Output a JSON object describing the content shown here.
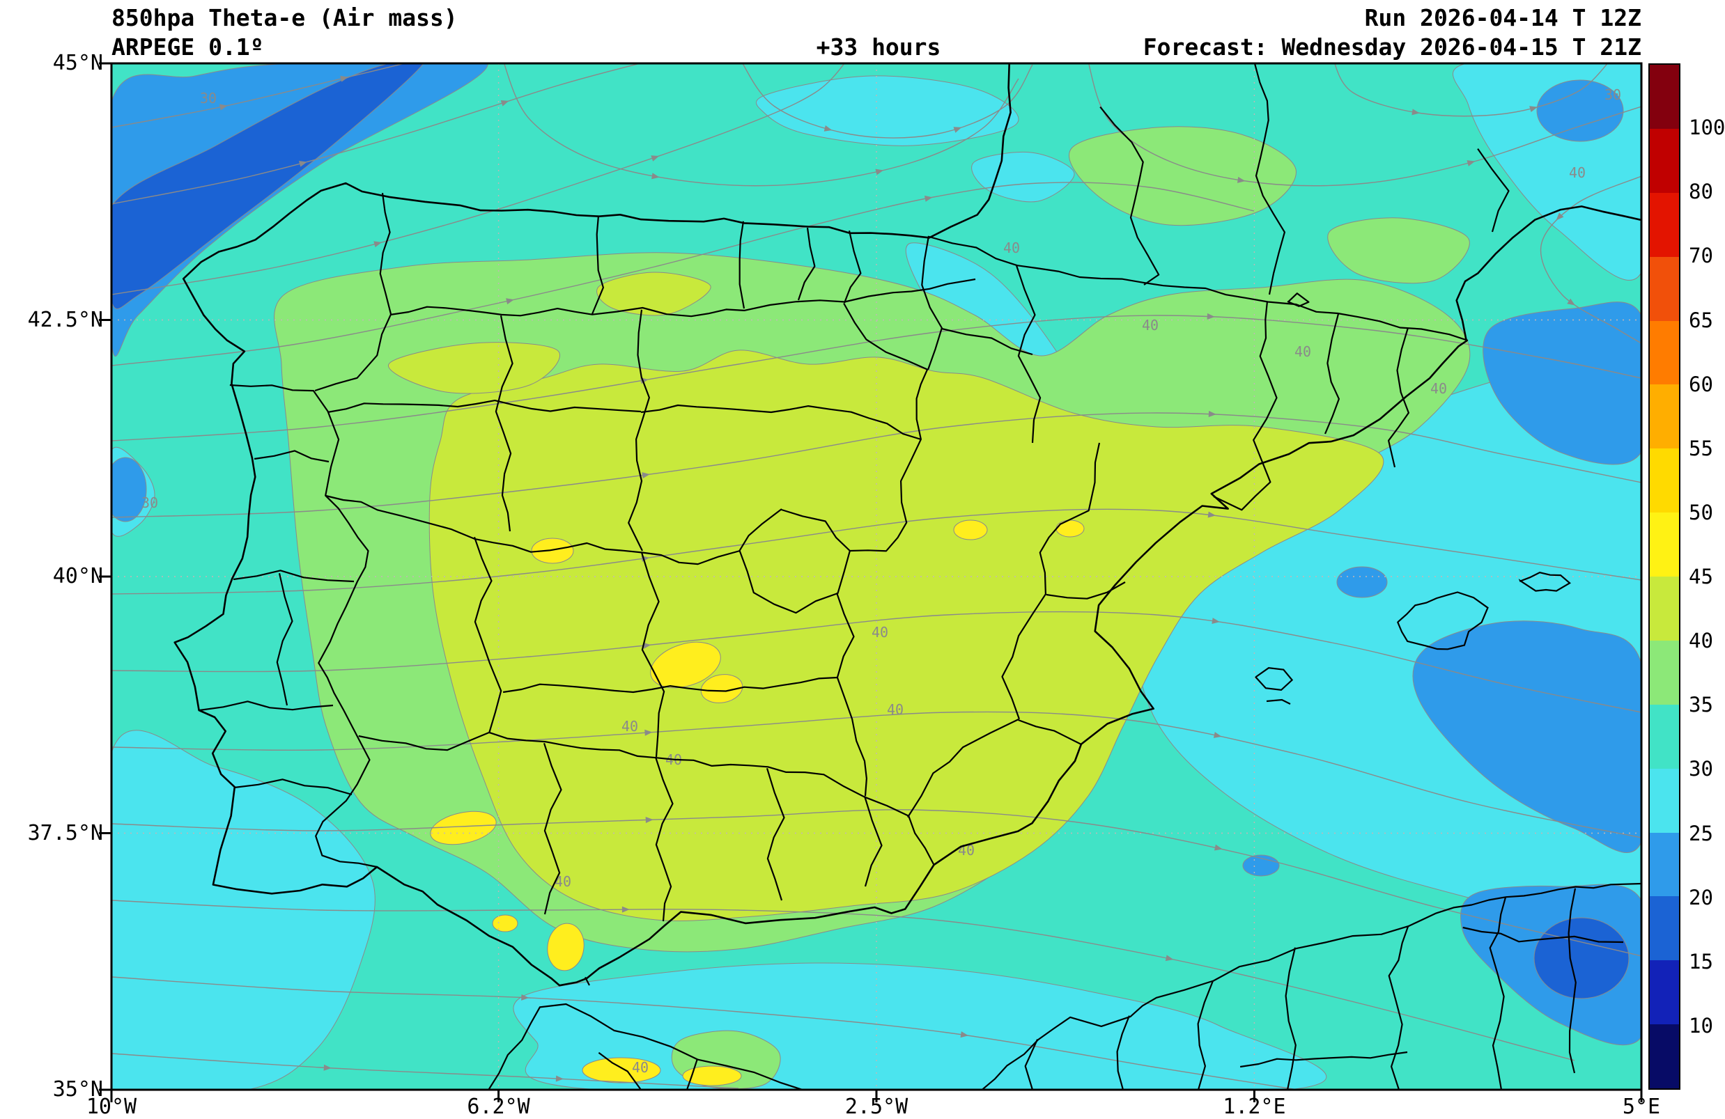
{
  "header": {
    "title_line1": "850hpa Theta-e (Air mass)",
    "title_line2": "ARPEGE 0.1º",
    "lead_time": "+33 hours",
    "run_label": "Run 2026-04-14 T 12Z",
    "forecast_label": "Forecast: Wednesday 2026-04-15 T 21Z"
  },
  "axes": {
    "lat_ticks": [
      "45°N",
      "42.5°N",
      "40°N",
      "37.5°N",
      "35°N"
    ],
    "lon_ticks": [
      "10°W",
      "6.2°W",
      "2.5°W",
      "1.2°E",
      "5°E"
    ]
  },
  "colorbar": {
    "tick_labels": [
      "100",
      "80",
      "70",
      "65",
      "60",
      "55",
      "50",
      "45",
      "40",
      "35",
      "30",
      "25",
      "20",
      "15",
      "10"
    ],
    "segment_colors_top_to_bottom": [
      "#83000e",
      "#c00000",
      "#e31400",
      "#f1500a",
      "#ff7c00",
      "#ffae00",
      "#ffda00",
      "#fff214",
      "#c8e93c",
      "#8ce878",
      "#41e3c6",
      "#4be4ee",
      "#2f9bea",
      "#1b63d4",
      "#1222b8",
      "#070b66"
    ]
  },
  "map": {
    "contour_label_values": {
      "primary": "40",
      "secondary": "30"
    },
    "palette": {
      "base_30_35": "#41e3c6",
      "cyan_25_30": "#4be4ee",
      "green_35_40": "#8ce878",
      "yellow_green_40_45": "#c8e93c",
      "yellow_45_50": "#ffee1e",
      "blue_20_25": "#2f9bea",
      "deep_blue_15_20": "#1b63d4",
      "stream": "#8a8a8a",
      "contour": "#8a8a8a",
      "grid": "#c4b6b6",
      "border": "#000000"
    }
  },
  "chart_data": {
    "type": "heatmap",
    "title": "850hpa Theta-e (Air mass)",
    "model": "ARPEGE 0.1º",
    "lead_time_hours": 33,
    "run": "2026-04-14 12Z",
    "valid": "Wednesday 2026-04-15 21Z",
    "lat_range_deg_n": [
      35,
      45
    ],
    "lon_range_deg_e": [
      -10,
      5
    ],
    "colorbar_levels": [
      10,
      15,
      20,
      25,
      30,
      35,
      40,
      45,
      50,
      55,
      60,
      65,
      70,
      80,
      100
    ],
    "values_visible_on_map": [
      15,
      50
    ],
    "labeled_contours": [
      40,
      30
    ],
    "legend_position": "right",
    "grid": true
  }
}
